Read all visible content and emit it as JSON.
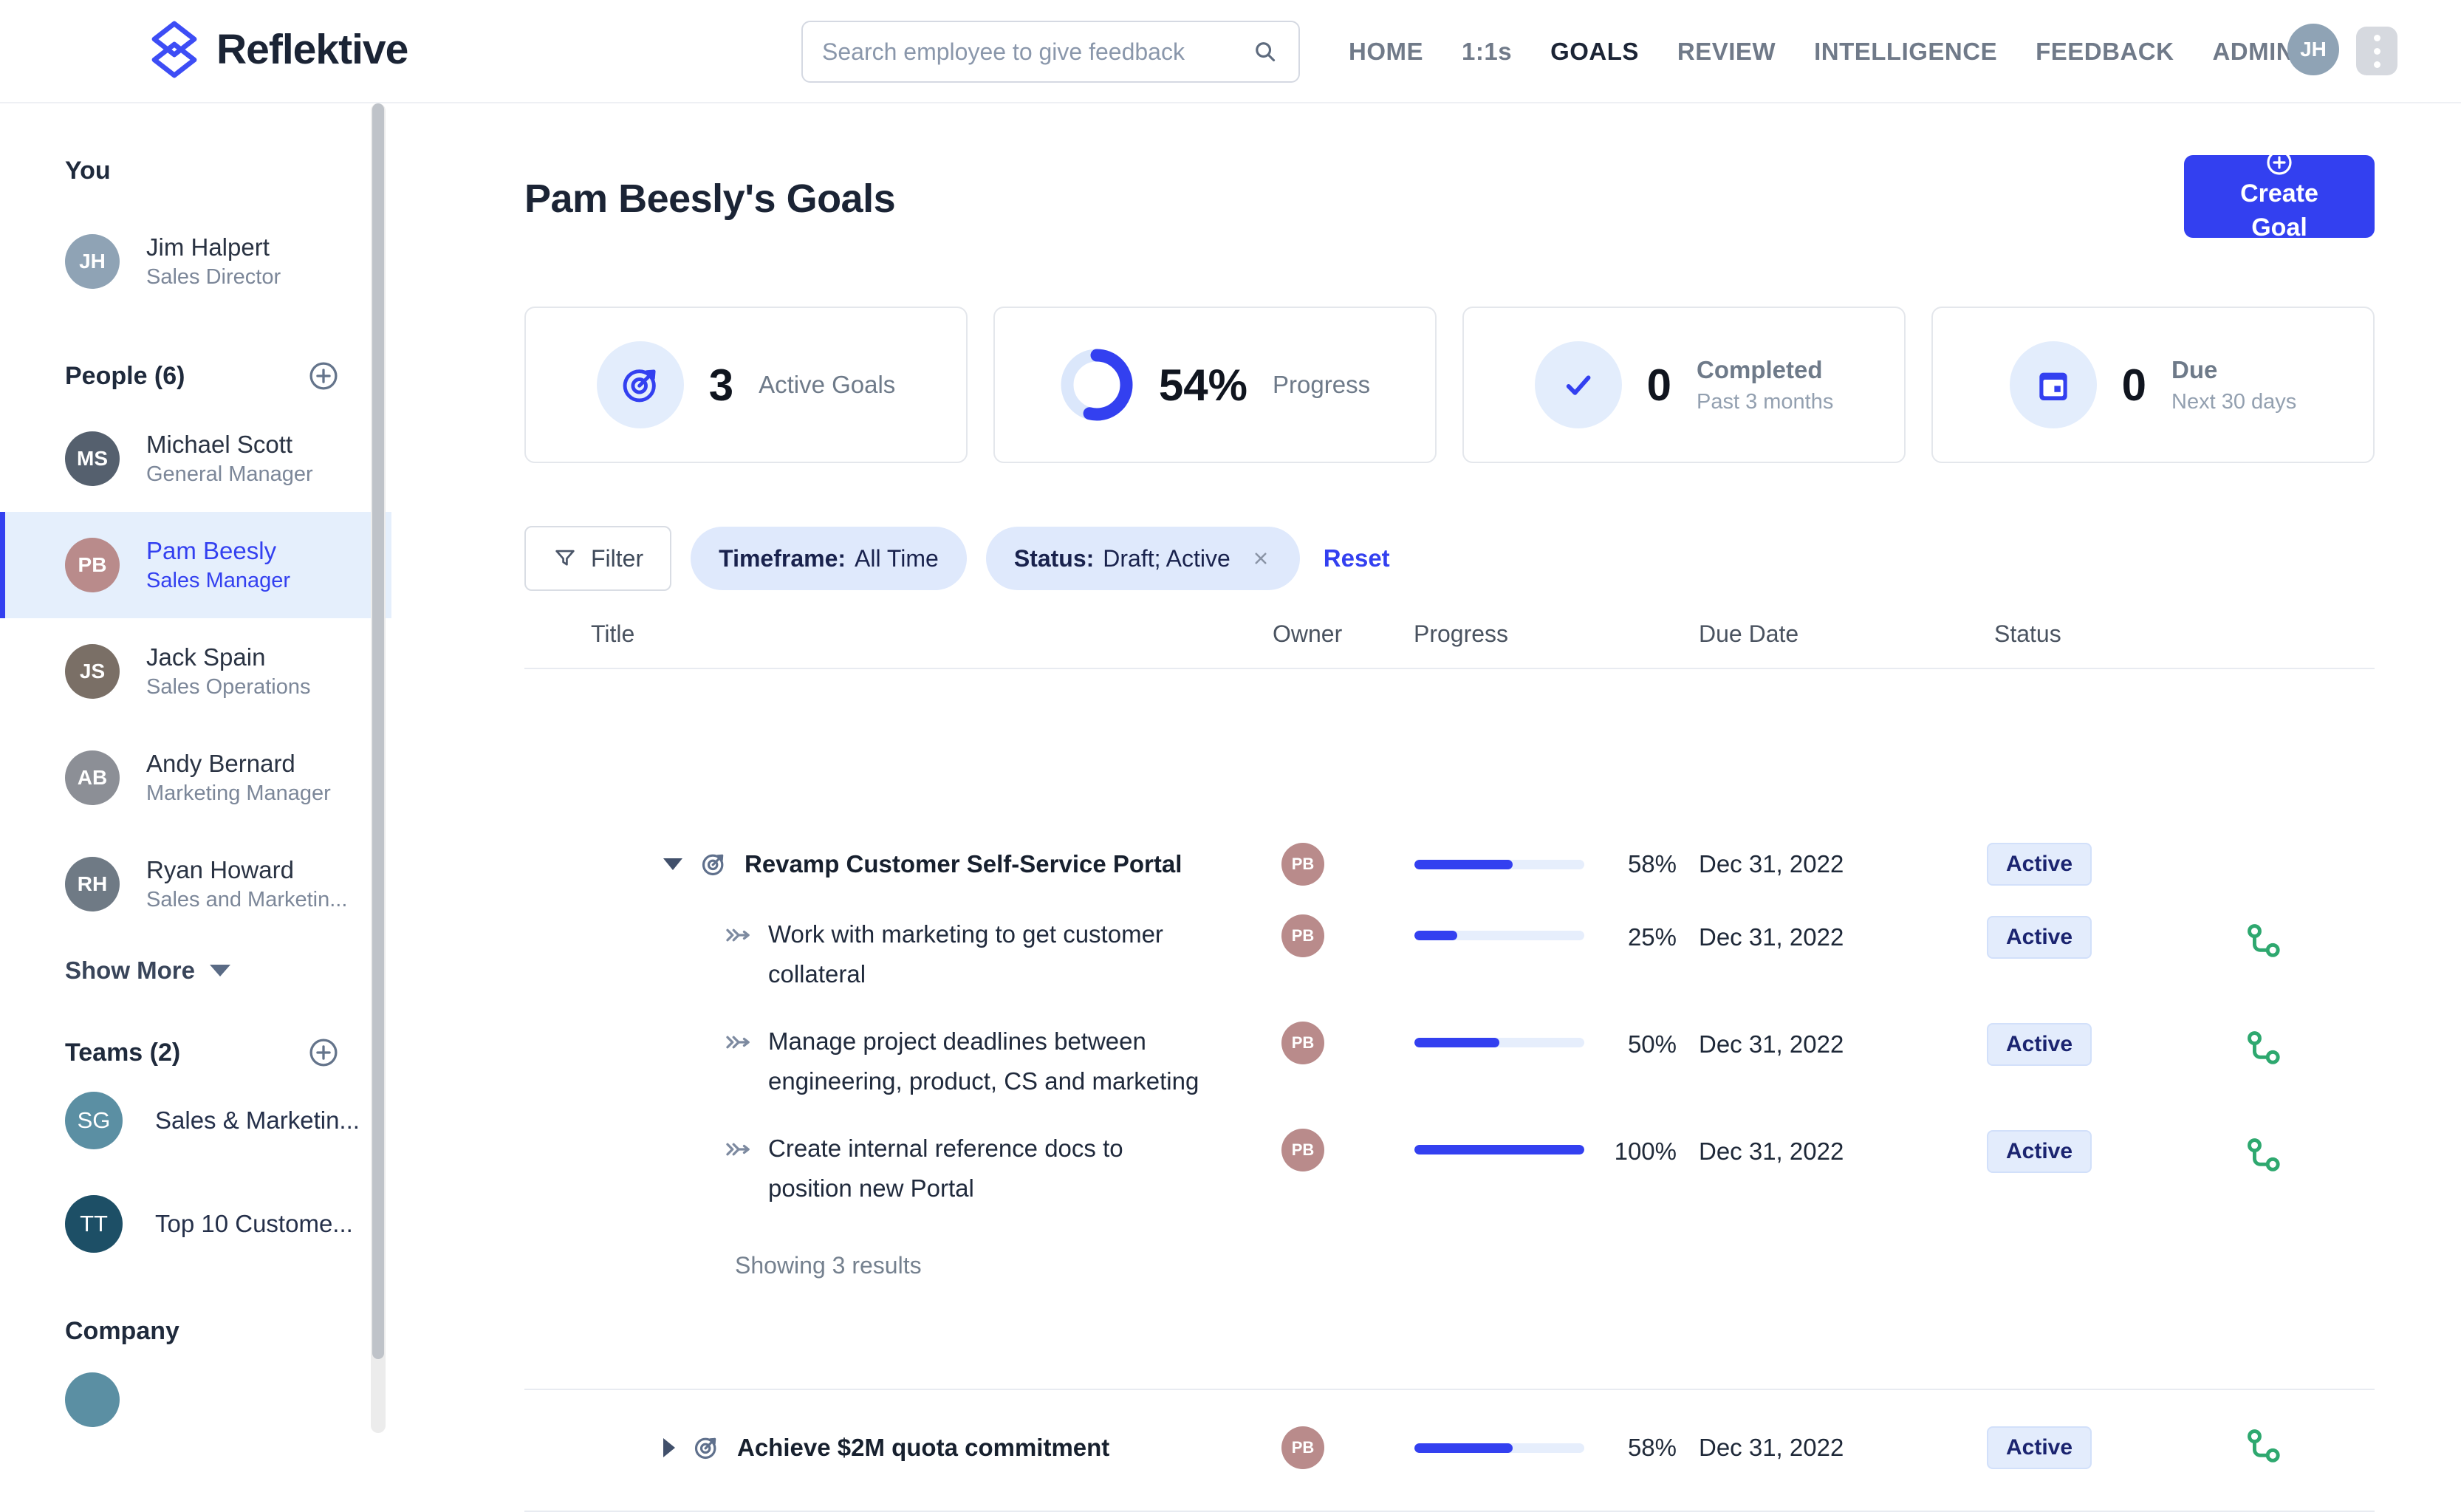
{
  "colors": {
    "accent": "#3340F0",
    "pill-bg": "#DFE9FC",
    "badge-bg": "#E3ECFC",
    "badge-text": "#1B2470",
    "green": "#2EA86F"
  },
  "header": {
    "brand": "Reflektive",
    "search_placeholder": "Search employee to give feedback",
    "nav": [
      "HOME",
      "1:1s",
      "GOALS",
      "REVIEW",
      "INTELLIGENCE",
      "FEEDBACK",
      "ADMIN"
    ],
    "avatar_initials": "JH"
  },
  "sidebar": {
    "you_heading": "You",
    "you": {
      "name": "Jim Halpert",
      "role": "Sales Director",
      "initials": "JH"
    },
    "people_heading": "People (6)",
    "people": [
      {
        "name": "Michael Scott",
        "role": "General Manager",
        "initials": "MS"
      },
      {
        "name": "Pam Beesly",
        "role": "Sales Manager",
        "initials": "PB"
      },
      {
        "name": "Jack Spain",
        "role": "Sales Operations",
        "initials": "JS"
      },
      {
        "name": "Andy Bernard",
        "role": "Marketing Manager",
        "initials": "AB"
      },
      {
        "name": "Ryan Howard",
        "role": "Sales and Marketin...",
        "initials": "RH"
      }
    ],
    "show_more": "Show More",
    "teams_heading": "Teams (2)",
    "teams": [
      {
        "initials": "SG",
        "name": "Sales & Marketin...",
        "color": "#5B8FA3"
      },
      {
        "initials": "TT",
        "name": "Top 10 Custome...",
        "color": "#1D4F66"
      }
    ],
    "company_heading": "Company"
  },
  "main": {
    "title": "Pam Beesly's Goals",
    "create_goal_label": "Create Goal",
    "stats": [
      {
        "value": "3",
        "label": "Active Goals"
      },
      {
        "value": "54%",
        "label": "Progress",
        "percent": 54
      },
      {
        "value": "0",
        "label": "Completed",
        "sublabel": "Past 3 months"
      },
      {
        "value": "0",
        "label": "Due",
        "sublabel": "Next 30 days"
      }
    ],
    "filters": {
      "filter_label": "Filter",
      "timeframe_label": "Timeframe:",
      "timeframe_value": "All Time",
      "status_label": "Status:",
      "status_value": "Draft; Active",
      "reset_label": "Reset"
    },
    "table": {
      "columns": [
        "Title",
        "Owner",
        "Progress",
        "Due Date",
        "Status"
      ],
      "owner_initials": "PB",
      "groups": [
        {
          "goal": {
            "title": "Revamp Customer Self-Service Portal",
            "progress": 58,
            "progress_text": "58%",
            "due": "Dec 31, 2022",
            "status": "Active"
          },
          "children": [
            {
              "title": "Work with marketing to get customer collateral",
              "progress": 25,
              "progress_text": "25%",
              "due": "Dec 31, 2022",
              "status": "Active"
            },
            {
              "title": "Manage project deadlines between engineering, product, CS and marketing",
              "progress": 50,
              "progress_text": "50%",
              "due": "Dec 31, 2022",
              "status": "Active"
            },
            {
              "title": "Create internal reference docs to position new Portal",
              "progress": 100,
              "progress_text": "100%",
              "due": "Dec 31, 2022",
              "status": "Active"
            }
          ],
          "footer": "Showing 3 results"
        },
        {
          "goal": {
            "title": "Achieve $2M quota commitment",
            "progress": 58,
            "progress_text": "58%",
            "due": "Dec 31, 2022",
            "status": "Active"
          }
        }
      ]
    }
  }
}
